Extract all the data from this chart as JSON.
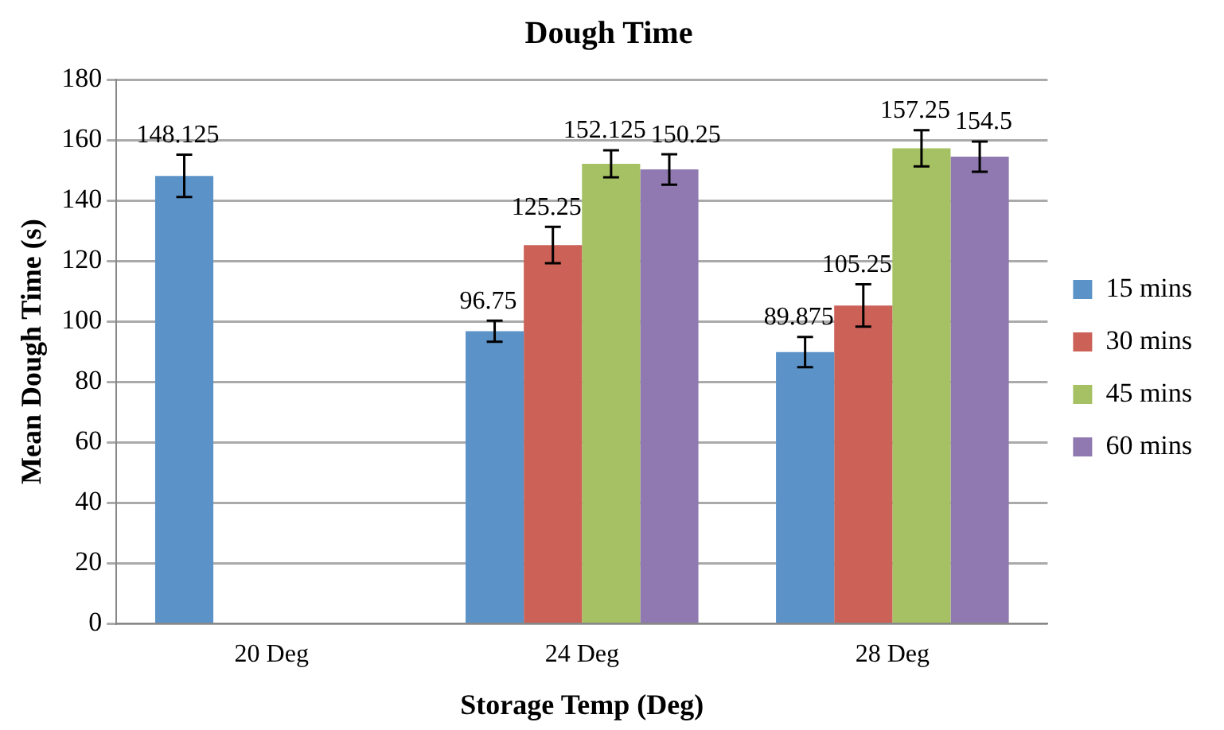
{
  "chart_data": {
    "type": "bar",
    "title": "Dough Time",
    "xlabel": "Storage Temp (Deg)",
    "ylabel": "Mean Dough Time (s)",
    "categories": [
      "20 Deg",
      "24 Deg",
      "28 Deg"
    ],
    "series": [
      {
        "name": "15 mins",
        "color": "#5b93c8",
        "values": [
          148.125,
          96.75,
          89.875
        ],
        "errors": [
          7,
          3.5,
          5
        ]
      },
      {
        "name": "30 mins",
        "color": "#cc6158",
        "values": [
          null,
          125.25,
          105.25
        ],
        "errors": [
          null,
          6,
          7
        ]
      },
      {
        "name": "45 mins",
        "color": "#a6c163",
        "values": [
          null,
          152.125,
          157.25
        ],
        "errors": [
          null,
          4.5,
          6
        ]
      },
      {
        "name": "60 mins",
        "color": "#8f79b0",
        "values": [
          null,
          150.25,
          154.5
        ],
        "errors": [
          null,
          5,
          5
        ]
      }
    ],
    "ylim": [
      0,
      180
    ],
    "yticks": [
      0,
      20,
      40,
      60,
      80,
      100,
      120,
      140,
      160,
      180
    ],
    "grid": "y",
    "legend": "right",
    "data_labels": true
  }
}
